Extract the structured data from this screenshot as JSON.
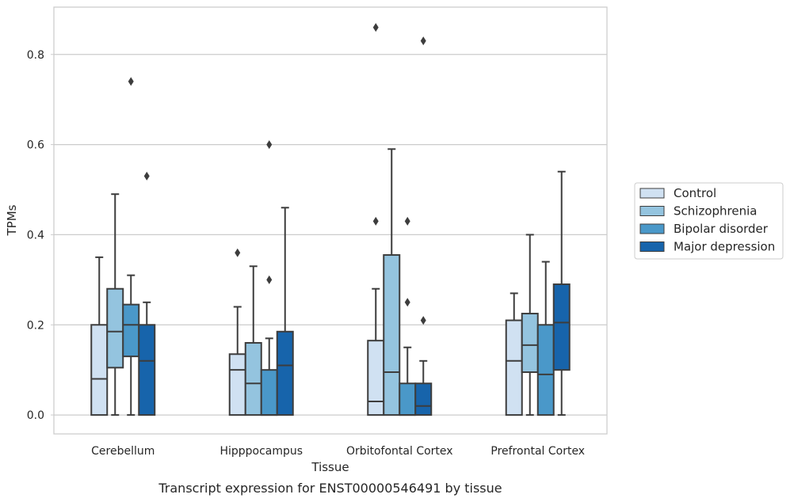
{
  "chart_data": {
    "type": "box",
    "xlabel": "Tissue",
    "ylabel": "TPMs",
    "caption": "Transcript expression for ENST00000546491 by tissue",
    "ylim": [
      -0.042,
      0.905
    ],
    "yticks": [
      0.0,
      0.2,
      0.4,
      0.6,
      0.8
    ],
    "ytick_labels": [
      "0.0",
      "0.2",
      "0.4",
      "0.6",
      "0.8"
    ],
    "grid": true,
    "legend_position": "right",
    "categories": [
      "Cerebellum",
      "Hipppocampus",
      "Orbitofontal Cortex",
      "Prefrontal Cortex"
    ],
    "series": [
      {
        "name": "Control",
        "color": "#d0e1f2",
        "boxes": [
          {
            "whislo": 0.0,
            "q1": 0.0,
            "med": 0.08,
            "q3": 0.2,
            "whishi": 0.35,
            "fliers": []
          },
          {
            "whislo": 0.0,
            "q1": 0.0,
            "med": 0.1,
            "q3": 0.135,
            "whishi": 0.24,
            "fliers": [
              0.36
            ]
          },
          {
            "whislo": 0.0,
            "q1": 0.0,
            "med": 0.03,
            "q3": 0.165,
            "whishi": 0.28,
            "fliers": [
              0.43,
              0.86
            ]
          },
          {
            "whislo": 0.0,
            "q1": 0.0,
            "med": 0.12,
            "q3": 0.21,
            "whishi": 0.27,
            "fliers": []
          }
        ]
      },
      {
        "name": "Schizophrenia",
        "color": "#94c4df",
        "boxes": [
          {
            "whislo": 0.0,
            "q1": 0.105,
            "med": 0.185,
            "q3": 0.28,
            "whishi": 0.49,
            "fliers": []
          },
          {
            "whislo": 0.0,
            "q1": 0.0,
            "med": 0.07,
            "q3": 0.16,
            "whishi": 0.33,
            "fliers": []
          },
          {
            "whislo": 0.0,
            "q1": 0.0,
            "med": 0.095,
            "q3": 0.355,
            "whishi": 0.59,
            "fliers": []
          },
          {
            "whislo": 0.0,
            "q1": 0.095,
            "med": 0.155,
            "q3": 0.225,
            "whishi": 0.4,
            "fliers": []
          }
        ]
      },
      {
        "name": "Bipolar disorder",
        "color": "#4a98c9",
        "boxes": [
          {
            "whislo": 0.0,
            "q1": 0.13,
            "med": 0.2,
            "q3": 0.245,
            "whishi": 0.31,
            "fliers": [
              0.74
            ]
          },
          {
            "whislo": 0.0,
            "q1": 0.0,
            "med": 0.0,
            "q3": 0.1,
            "whishi": 0.17,
            "fliers": [
              0.3,
              0.6
            ]
          },
          {
            "whislo": 0.0,
            "q1": 0.0,
            "med": 0.0,
            "q3": 0.07,
            "whishi": 0.15,
            "fliers": [
              0.25,
              0.43
            ]
          },
          {
            "whislo": 0.0,
            "q1": 0.0,
            "med": 0.09,
            "q3": 0.2,
            "whishi": 0.34,
            "fliers": []
          }
        ]
      },
      {
        "name": "Major depression",
        "color": "#1764ab",
        "boxes": [
          {
            "whislo": 0.0,
            "q1": 0.0,
            "med": 0.12,
            "q3": 0.2,
            "whishi": 0.25,
            "fliers": [
              0.53
            ]
          },
          {
            "whislo": 0.0,
            "q1": 0.0,
            "med": 0.11,
            "q3": 0.185,
            "whishi": 0.46,
            "fliers": []
          },
          {
            "whislo": 0.0,
            "q1": 0.0,
            "med": 0.02,
            "q3": 0.07,
            "whishi": 0.12,
            "fliers": [
              0.21,
              0.83
            ]
          },
          {
            "whislo": 0.0,
            "q1": 0.1,
            "med": 0.205,
            "q3": 0.29,
            "whishi": 0.54,
            "fliers": []
          }
        ]
      }
    ]
  }
}
